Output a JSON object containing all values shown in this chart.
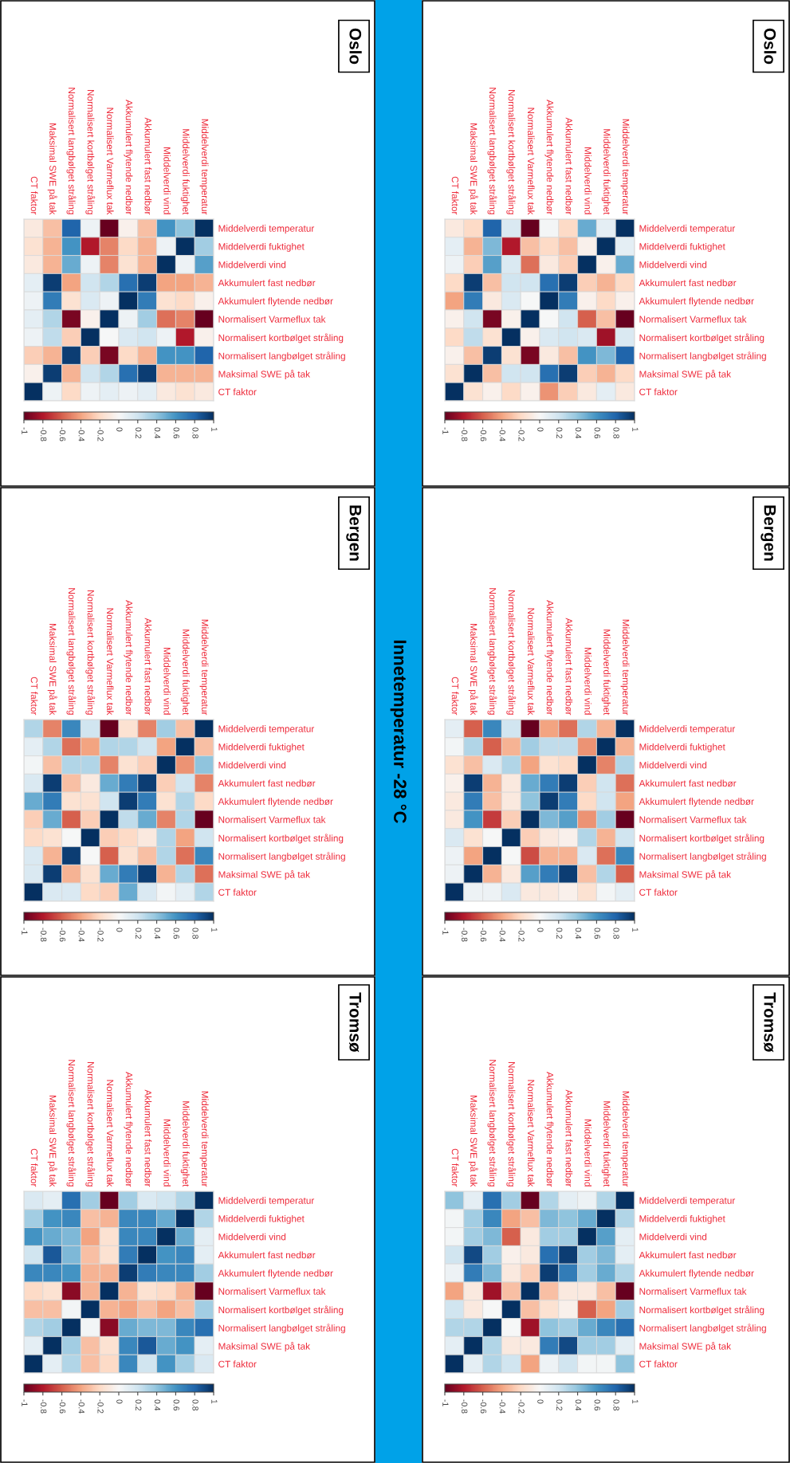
{
  "chart_data": [
    {
      "type": "heatmap",
      "title": "Oslo",
      "annotations": [
        "Innetemperatur -28 °C"
      ],
      "categories": [
        "CT faktor",
        "Maksimal SWE på tak",
        "Normalisert langbølget stråling",
        "Normalisert kortbølget stråling",
        "Normalisert Varmeflux tak",
        "Akkumulert flytende nedbør",
        "Akkumulert fast nedbør",
        "Middelverdi vind",
        "Middelverdi fuktighet",
        "Middelverdi temperatur"
      ],
      "y_categories": [
        "Middelverdi temperatur",
        "Middelverdi fuktighet",
        "Middelverdi vind",
        "Akkumulert fast nedbør",
        "Akkumulert flytende nedbør",
        "Normalisert Varmeflux tak",
        "Normalisert kortbølget stråling",
        "Normalisert langbølget stråling",
        "Maksimal SWE på tak",
        "CT faktor"
      ],
      "cells": [
        [
          -0.1,
          -0.3,
          0.8,
          0.05,
          -1.0,
          -0.05,
          -0.3,
          0.6,
          0.4,
          1
        ],
        [
          -0.15,
          -0.35,
          0.6,
          -0.8,
          -0.5,
          -0.2,
          -0.35,
          0.05,
          1,
          0.35
        ],
        [
          -0.1,
          -0.35,
          0.5,
          0.05,
          -0.5,
          -0.15,
          -0.35,
          1,
          0.05,
          0.55
        ],
        [
          0.1,
          0.95,
          -0.4,
          0.2,
          0.3,
          0.75,
          0.95,
          -0.4,
          -0.4,
          -0.35
        ],
        [
          0.05,
          0.7,
          -0.15,
          0.15,
          0.05,
          1,
          0.7,
          -0.15,
          -0.2,
          -0.05
        ],
        [
          0.1,
          0.3,
          -0.95,
          -0.05,
          1,
          0.05,
          0.35,
          -0.55,
          -0.5,
          -1.0
        ],
        [
          0.05,
          0.25,
          -0.25,
          1,
          0.0,
          0.15,
          0.2,
          0.05,
          -0.8,
          -0.05
        ],
        [
          -0.25,
          -0.35,
          0.95,
          -0.25,
          -0.95,
          -0.2,
          -0.35,
          0.6,
          0.6,
          0.8
        ],
        [
          -0.05,
          0.95,
          -0.35,
          0.2,
          0.3,
          0.75,
          0.95,
          -0.35,
          -0.35,
          -0.35
        ],
        [
          1,
          0.05,
          -0.2,
          0.05,
          0.1,
          0.05,
          0.1,
          -0.1,
          -0.15,
          -0.1
        ]
      ],
      "clim": [
        -1,
        1
      ],
      "cticks": [
        -1,
        -0.8,
        -0.6,
        -0.4,
        -0.2,
        0,
        0.2,
        0.4,
        0.6,
        0.8,
        1
      ]
    },
    {
      "type": "heatmap",
      "title": "Oslo",
      "categories": [
        "CT faktor",
        "Maksimal SWE på tak",
        "Normalisert langbølget stråling",
        "Normalisert kortbølget stråling",
        "Normalisert Varmeflux tak",
        "Akkumulert flytende nedbør",
        "Akkumulert fast nedbør",
        "Middelverdi vind",
        "Middelverdi fuktighet",
        "Middelverdi temperatur"
      ],
      "y_categories": [
        "Middelverdi temperatur",
        "Middelverdi fuktighet",
        "Middelverdi vind",
        "Akkumulert fast nedbør",
        "Akkumulert flytende nedbør",
        "Normalisert Varmeflux tak",
        "Normalisert kortbølget stråling",
        "Normalisert langbølget stråling",
        "Maksimal SWE på tak",
        "CT faktor"
      ],
      "cells": [
        [
          -0.1,
          -0.2,
          0.8,
          0.15,
          -1.0,
          0.02,
          -0.2,
          0.5,
          0.1,
          1
        ],
        [
          0.1,
          -0.35,
          0.45,
          -0.8,
          -0.3,
          -0.2,
          -0.3,
          -0.05,
          1,
          0.1
        ],
        [
          0.05,
          -0.25,
          0.55,
          0.15,
          -0.55,
          -0.1,
          -0.25,
          1,
          -0.05,
          0.5
        ],
        [
          -0.2,
          0.95,
          -0.3,
          0.2,
          0.2,
          0.75,
          0.95,
          -0.25,
          -0.35,
          -0.2
        ],
        [
          -0.4,
          0.7,
          -0.1,
          0.15,
          0.0,
          1,
          0.7,
          -0.05,
          -0.2,
          -0.05
        ],
        [
          -0.05,
          0.2,
          -0.95,
          -0.05,
          1,
          0.0,
          0.2,
          -0.6,
          -0.3,
          -1.0
        ],
        [
          -0.2,
          0.25,
          -0.15,
          1,
          -0.05,
          0.15,
          0.2,
          0.15,
          -0.85,
          0.15
        ],
        [
          -0.05,
          -0.3,
          0.95,
          -0.15,
          -0.95,
          -0.1,
          -0.3,
          0.6,
          0.45,
          0.8
        ],
        [
          -0.15,
          1,
          -0.3,
          0.2,
          0.2,
          0.75,
          0.95,
          -0.25,
          -0.35,
          -0.2
        ],
        [
          1,
          -0.15,
          -0.05,
          -0.2,
          -0.05,
          -0.45,
          -0.25,
          -0.1,
          0.1,
          -0.1
        ]
      ],
      "clim": [
        -1,
        1
      ],
      "cticks": [
        -1,
        -0.8,
        -0.6,
        -0.4,
        -0.2,
        0,
        0.2,
        0.4,
        0.6,
        0.8,
        1
      ]
    },
    {
      "type": "heatmap",
      "title": "Bergen",
      "categories": [
        "CT faktor",
        "Maksimal SWE på tak",
        "Normalisert langbølget stråling",
        "Normalisert kortbølget stråling",
        "Normalisert Varmeflux tak",
        "Akkumulert flytende nedbør",
        "Akkumulert fast nedbør",
        "Middelverdi vind",
        "Middelverdi fuktighet",
        "Middelverdi temperatur"
      ],
      "y_categories": [
        "Middelverdi temperatur",
        "Middelverdi fuktighet",
        "Middelverdi vind",
        "Akkumulert fast nedbør",
        "Akkumulert flytende nedbør",
        "Normalisert Varmeflux tak",
        "Normalisert kortbølget stråling",
        "Normalisert langbølget stråling",
        "Maksimal SWE på tak",
        "CT faktor"
      ],
      "cells": [
        [
          0.3,
          -0.5,
          0.65,
          0.2,
          -1.0,
          -0.15,
          -0.5,
          0.35,
          -0.3,
          1
        ],
        [
          0.1,
          0.3,
          -0.55,
          -0.4,
          0.3,
          0.3,
          0.2,
          -0.4,
          1,
          -0.3
        ],
        [
          0.03,
          -0.3,
          0.3,
          0.3,
          -0.5,
          -0.15,
          -0.25,
          1,
          -0.45,
          0.4
        ],
        [
          0.15,
          0.95,
          -0.3,
          -0.1,
          0.5,
          0.7,
          0.95,
          -0.25,
          0.2,
          -0.5
        ],
        [
          0.5,
          0.7,
          -0.15,
          -0.15,
          0.2,
          0.95,
          0.7,
          -0.15,
          0.3,
          -0.2
        ],
        [
          -0.25,
          0.5,
          -0.6,
          -0.25,
          1,
          0.25,
          0.5,
          -0.5,
          0.3,
          -1.0
        ],
        [
          -0.2,
          -0.15,
          0.0,
          1,
          -0.25,
          -0.2,
          -0.1,
          0.3,
          -0.4,
          0.2
        ],
        [
          0.15,
          -0.35,
          0.95,
          0.0,
          -0.6,
          -0.15,
          -0.3,
          0.3,
          -0.55,
          0.65
        ],
        [
          0.15,
          0.95,
          -0.35,
          -0.15,
          0.5,
          0.7,
          0.95,
          -0.35,
          0.3,
          -0.55
        ],
        [
          1,
          0.15,
          0.15,
          -0.2,
          -0.25,
          0.5,
          0.15,
          0.03,
          0.1,
          0.3
        ]
      ],
      "clim": [
        -1,
        1
      ],
      "cticks": [
        -1,
        -0.8,
        -0.6,
        -0.4,
        -0.2,
        0,
        0.2,
        0.4,
        0.6,
        0.8,
        1
      ]
    },
    {
      "type": "heatmap",
      "title": "Bergen",
      "categories": [
        "CT faktor",
        "Maksimal SWE på tak",
        "Normalisert langbølget stråling",
        "Normalisert kortbølget stråling",
        "Normalisert Varmeflux tak",
        "Akkumulert flytende nedbør",
        "Akkumulert fast nedbør",
        "Middelverdi vind",
        "Middelverdi fuktighet",
        "Middelverdi temperatur"
      ],
      "y_categories": [
        "Middelverdi temperatur",
        "Middelverdi fuktighet",
        "Middelverdi vind",
        "Akkumulert fast nedbør",
        "Akkumulert flytende nedbør",
        "Normalisert Varmeflux tak",
        "Normalisert kortbølget stråling",
        "Normalisert langbølget stråling",
        "Maksimal SWE på tak",
        "CT faktor"
      ],
      "cells": [
        [
          0.1,
          -0.6,
          0.65,
          0.2,
          -1.0,
          -0.4,
          -0.55,
          0.3,
          -0.35,
          1
        ],
        [
          0.03,
          0.3,
          -0.6,
          -0.35,
          0.35,
          0.25,
          0.25,
          -0.45,
          1,
          -0.35
        ],
        [
          -0.15,
          -0.3,
          0.15,
          0.3,
          -0.4,
          -0.15,
          -0.2,
          1,
          -0.5,
          0.3
        ],
        [
          -0.05,
          0.95,
          -0.35,
          -0.1,
          0.5,
          0.7,
          0.95,
          -0.25,
          0.2,
          -0.55
        ],
        [
          -0.1,
          0.7,
          -0.3,
          -0.1,
          0.4,
          0.95,
          0.7,
          -0.2,
          0.2,
          -0.4
        ],
        [
          -0.1,
          0.6,
          -0.7,
          -0.25,
          1,
          0.45,
          0.55,
          -0.45,
          0.35,
          -1.0
        ],
        [
          0.15,
          -0.15,
          0.0,
          1,
          -0.25,
          -0.1,
          -0.05,
          0.3,
          -0.35,
          0.2
        ],
        [
          0.05,
          -0.4,
          1,
          0.0,
          -0.65,
          -0.35,
          -0.35,
          0.15,
          -0.55,
          0.65
        ],
        [
          0.05,
          1,
          -0.35,
          -0.1,
          0.55,
          0.7,
          0.95,
          -0.3,
          0.3,
          -0.6
        ],
        [
          1,
          0.05,
          0.05,
          0.15,
          -0.1,
          -0.1,
          -0.05,
          -0.15,
          0.03,
          0.1
        ]
      ],
      "clim": [
        -1,
        1
      ],
      "cticks": [
        -1,
        -0.8,
        -0.6,
        -0.4,
        -0.2,
        0,
        0.2,
        0.4,
        0.6,
        0.8,
        1
      ]
    },
    {
      "type": "heatmap",
      "title": "Tromsø",
      "categories": [
        "CT faktor",
        "Maksimal SWE på tak",
        "Normalisert langbølget stråling",
        "Normalisert kortbølget stråling",
        "Normalisert Varmeflux tak",
        "Akkumulert flytende nedbør",
        "Akkumulert fast nedbør",
        "Middelverdi vind",
        "Middelverdi fuktighet",
        "Middelverdi temperatur"
      ],
      "y_categories": [
        "Middelverdi temperatur",
        "Middelverdi fuktighet",
        "Middelverdi vind",
        "Akkumulert fast nedbør",
        "Akkumulert flytende nedbør",
        "Normalisert Varmeflux tak",
        "Normalisert kortbølget stråling",
        "Normalisert langbølget stråling",
        "Maksimal SWE på tak",
        "CT faktor"
      ],
      "cells": [
        [
          0.15,
          0.1,
          0.75,
          0.35,
          -1.0,
          0.35,
          0.15,
          0.2,
          0.3,
          1
        ],
        [
          0.35,
          0.6,
          0.65,
          -0.3,
          -0.35,
          0.65,
          0.65,
          0.5,
          1,
          0.3
        ],
        [
          0.6,
          0.5,
          0.45,
          -0.4,
          -0.15,
          0.65,
          0.65,
          1,
          0.5,
          0.1
        ],
        [
          0.2,
          0.85,
          0.45,
          -0.3,
          -0.15,
          0.7,
          1.0,
          0.6,
          0.65,
          0.1
        ],
        [
          0.65,
          0.65,
          0.6,
          -0.35,
          -0.35,
          0.95,
          0.7,
          0.65,
          0.65,
          0.35
        ],
        [
          -0.2,
          -0.15,
          -0.9,
          -0.35,
          1,
          -0.35,
          -0.15,
          -0.2,
          -0.35,
          -1.0
        ],
        [
          -0.3,
          -0.3,
          0.03,
          1,
          -0.35,
          -0.4,
          -0.3,
          -0.4,
          -0.3,
          0.35
        ],
        [
          0.3,
          0.35,
          1,
          0.03,
          -0.9,
          0.5,
          0.45,
          0.45,
          0.65,
          0.75
        ],
        [
          0.1,
          1,
          0.35,
          -0.3,
          -0.15,
          0.65,
          0.85,
          0.5,
          0.6,
          0.1
        ],
        [
          1,
          0.1,
          0.3,
          -0.3,
          -0.2,
          0.65,
          0.2,
          0.6,
          0.35,
          0.15
        ]
      ],
      "clim": [
        -1,
        1
      ],
      "cticks": [
        -1,
        -0.8,
        -0.6,
        -0.4,
        -0.2,
        0,
        0.2,
        0.4,
        0.6,
        0.8,
        1
      ]
    },
    {
      "type": "heatmap",
      "title": "Tromsø",
      "categories": [
        "CT faktor",
        "Maksimal SWE på tak",
        "Normalisert langbølget stråling",
        "Normalisert kortbølget stråling",
        "Normalisert Varmeflux tak",
        "Akkumulert flytende nedbør",
        "Akkumulert fast nedbør",
        "Middelverdi vind",
        "Middelverdi fuktighet",
        "Middelverdi temperatur"
      ],
      "y_categories": [
        "Middelverdi temperatur",
        "Middelverdi fuktighet",
        "Middelverdi vind",
        "Akkumulert fast nedbør",
        "Akkumulert flytende nedbør",
        "Normalisert Varmeflux tak",
        "Normalisert kortbølget stråling",
        "Normalisert langbølget stråling",
        "Maksimal SWE på tak",
        "CT faktor"
      ],
      "cells": [
        [
          0.4,
          0.1,
          0.75,
          0.35,
          -1.0,
          0.3,
          0.1,
          0.05,
          0.3,
          1
        ],
        [
          0.03,
          0.35,
          0.65,
          -0.4,
          -0.3,
          0.45,
          0.4,
          0.5,
          1,
          0.3
        ],
        [
          0.03,
          0.35,
          0.45,
          -0.6,
          -0.1,
          0.35,
          0.35,
          1,
          0.55,
          0.1
        ],
        [
          0.2,
          0.9,
          0.35,
          -0.05,
          -0.1,
          0.75,
          0.95,
          0.35,
          0.45,
          0.1
        ],
        [
          0.05,
          0.7,
          0.45,
          -0.1,
          -0.25,
          0.95,
          0.7,
          0.35,
          0.5,
          0.3
        ],
        [
          -0.4,
          -0.1,
          -0.85,
          -0.3,
          1,
          -0.3,
          -0.1,
          -0.1,
          -0.3,
          -1.0
        ],
        [
          0.2,
          -0.1,
          0.0,
          1,
          -0.3,
          -0.15,
          -0.05,
          -0.6,
          -0.4,
          0.35
        ],
        [
          0.3,
          0.3,
          1,
          0.0,
          -0.85,
          0.4,
          0.35,
          0.5,
          0.65,
          0.75
        ],
        [
          0.1,
          1,
          0.3,
          -0.1,
          -0.1,
          0.7,
          0.9,
          0.35,
          0.35,
          0.1
        ],
        [
          1,
          0.1,
          0.3,
          0.2,
          -0.4,
          0.05,
          0.2,
          0.03,
          0.03,
          0.4
        ]
      ],
      "clim": [
        -1,
        1
      ],
      "cticks": [
        -1,
        -0.8,
        -0.6,
        -0.4,
        -0.2,
        0,
        0.2,
        0.4,
        0.6,
        0.8,
        1
      ]
    }
  ]
}
